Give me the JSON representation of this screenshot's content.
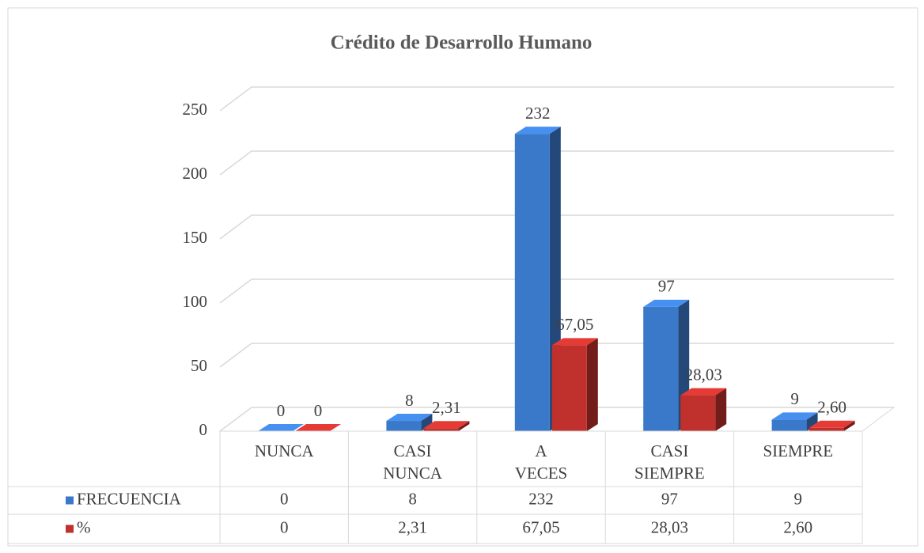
{
  "chart_data": {
    "type": "bar3d",
    "title": "Crédito de Desarrollo Humano",
    "categories": [
      "NUNCA",
      "CASI NUNCA",
      "A VECES",
      "CASI SIEMPRE",
      "SIEMPRE"
    ],
    "series": [
      {
        "name": "FRECUENCIA",
        "color": "#3a78c9",
        "values": [
          0,
          8,
          232,
          97,
          9
        ]
      },
      {
        "name": "%",
        "color": "#c0302c",
        "values": [
          0,
          2.31,
          67.05,
          28.03,
          2.6
        ],
        "value_labels": [
          "0",
          "2,31",
          "67,05",
          "28,03",
          "2,60"
        ]
      }
    ],
    "ylim": [
      0,
      250
    ],
    "yticks": [
      0,
      50,
      100,
      150,
      200,
      250
    ],
    "grid": true,
    "data_table": true
  }
}
